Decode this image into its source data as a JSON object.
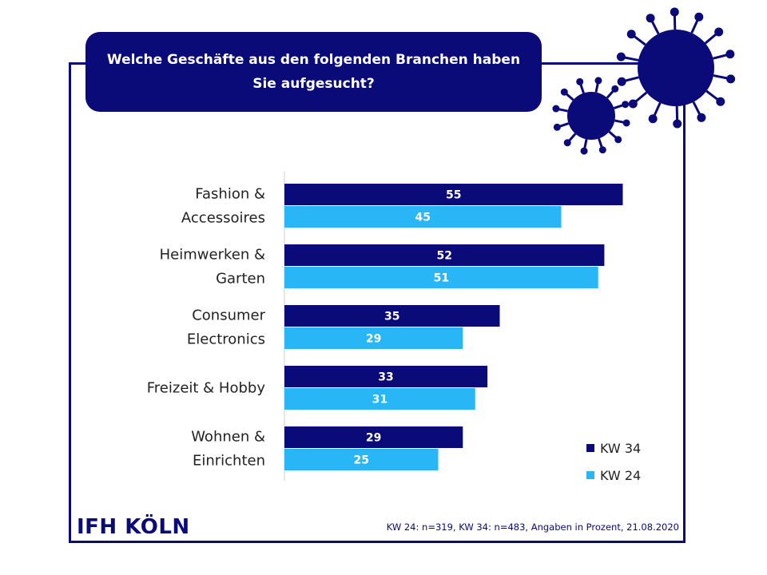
{
  "title": {
    "line1": "Welche Geschäfte aus den folgenden Branchen haben",
    "line2": "Sie aufgesucht?"
  },
  "colors": {
    "navy": "#0a0a78",
    "light_blue": "#29b6f6"
  },
  "icons": [
    "virus-icon-large",
    "virus-icon-small"
  ],
  "chart_data": {
    "type": "bar",
    "orientation": "horizontal",
    "categories": [
      [
        "Fashion &",
        "Accessoires"
      ],
      [
        "Heimwerken &",
        "Garten"
      ],
      [
        "Consumer",
        "Electronics"
      ],
      [
        "Freizeit & Hobby"
      ],
      [
        "Wohnen &",
        "Einrichten"
      ]
    ],
    "series": [
      {
        "name": "KW 34",
        "color": "#0a0a78",
        "values": [
          55,
          52,
          35,
          33,
          29
        ]
      },
      {
        "name": "KW 24",
        "color": "#29b6f6",
        "values": [
          45,
          51,
          29,
          31,
          25
        ]
      }
    ],
    "xlim": [
      0,
      60
    ],
    "legend_position": "bottom-right",
    "data_labels": true,
    "grid": false
  },
  "logo": "IFH KÖLN",
  "footnote": "KW 24: n=319,  KW 34: n=483,  Angaben in Prozent, 21.08.2020"
}
